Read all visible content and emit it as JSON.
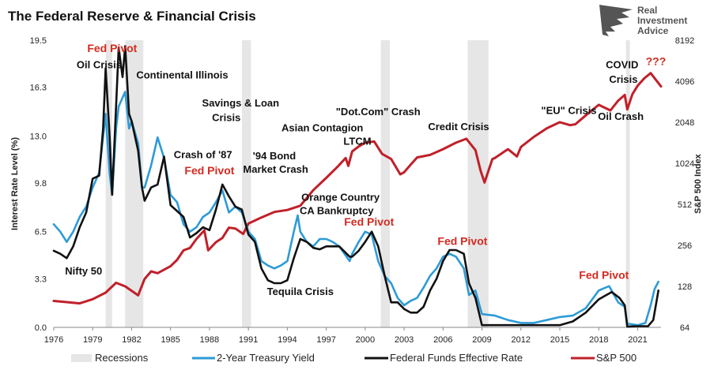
{
  "chart_data": {
    "type": "line",
    "title": "The Federal Reserve & Financial Crisis",
    "brand": "Real Investment Advice",
    "brand_lines": [
      "Real",
      "Investment",
      "Advice"
    ],
    "ylabel_left": "Interest Rate Level (%)",
    "ylabel_right": "S&P 500 Index",
    "xlim": [
      1976,
      2022.8
    ],
    "ylim_left": [
      0,
      19.5
    ],
    "ylim_right_log2": [
      6,
      13
    ],
    "x_ticks": [
      "1976",
      "1979",
      "1982",
      "1985",
      "1988",
      "1991",
      "1994",
      "1997",
      "2000",
      "2003",
      "2006",
      "2009",
      "2012",
      "2015",
      "2018",
      "2021"
    ],
    "y_ticks_left": [
      "0.0",
      "3.3",
      "6.5",
      "9.8",
      "13.0",
      "16.3",
      "19.5"
    ],
    "y_ticks_right": [
      "64",
      "128",
      "256",
      "512",
      "1024",
      "2048",
      "4096",
      "8192"
    ],
    "recessions": [
      [
        1980.0,
        1980.5
      ],
      [
        1981.5,
        1982.9
      ],
      [
        1990.5,
        1991.2
      ],
      [
        2001.2,
        2001.9
      ],
      [
        2007.9,
        2009.5
      ],
      [
        2020.1,
        2020.4
      ]
    ],
    "legend": [
      "Recessions",
      "2-Year Treasury Yield",
      "Federal Funds Effective Rate",
      "S&P 500"
    ],
    "colors": {
      "treasury": "#2e9bd6",
      "fedfunds": "#111111",
      "sp500": "#c0202a",
      "recession": "#e6e6e6",
      "pivot": "#d42a1f"
    },
    "series": [
      {
        "name": "Federal Funds Effective Rate",
        "points": [
          [
            1976,
            5.2
          ],
          [
            1976.5,
            5.0
          ],
          [
            1977,
            4.7
          ],
          [
            1977.5,
            5.5
          ],
          [
            1978,
            6.8
          ],
          [
            1978.5,
            7.8
          ],
          [
            1979,
            10.1
          ],
          [
            1979.5,
            10.3
          ],
          [
            1979.8,
            13.5
          ],
          [
            1980,
            17.6
          ],
          [
            1980.3,
            13.0
          ],
          [
            1980.5,
            9.0
          ],
          [
            1980.8,
            15.0
          ],
          [
            1981,
            19.0
          ],
          [
            1981.3,
            17.0
          ],
          [
            1981.5,
            19.1
          ],
          [
            1981.8,
            14.5
          ],
          [
            1982,
            14.0
          ],
          [
            1982.5,
            12.0
          ],
          [
            1982.8,
            9.5
          ],
          [
            1983,
            8.6
          ],
          [
            1983.5,
            9.5
          ],
          [
            1984,
            9.7
          ],
          [
            1984.5,
            11.6
          ],
          [
            1985,
            8.3
          ],
          [
            1985.5,
            7.9
          ],
          [
            1986,
            7.5
          ],
          [
            1986.5,
            6.1
          ],
          [
            1987,
            6.4
          ],
          [
            1987.5,
            6.8
          ],
          [
            1988,
            6.6
          ],
          [
            1988.5,
            8.0
          ],
          [
            1989,
            9.7
          ],
          [
            1989.5,
            8.9
          ],
          [
            1990,
            8.2
          ],
          [
            1990.5,
            8.0
          ],
          [
            1991,
            6.3
          ],
          [
            1991.5,
            5.8
          ],
          [
            1992,
            4.0
          ],
          [
            1992.5,
            3.2
          ],
          [
            1993,
            3.0
          ],
          [
            1993.5,
            3.0
          ],
          [
            1994,
            3.2
          ],
          [
            1994.5,
            4.7
          ],
          [
            1995,
            6.0
          ],
          [
            1995.5,
            5.8
          ],
          [
            1996,
            5.4
          ],
          [
            1996.5,
            5.3
          ],
          [
            1997,
            5.5
          ],
          [
            1997.5,
            5.5
          ],
          [
            1998,
            5.5
          ],
          [
            1998.8,
            4.8
          ],
          [
            1999,
            4.8
          ],
          [
            1999.5,
            5.2
          ],
          [
            2000,
            5.8
          ],
          [
            2000.5,
            6.5
          ],
          [
            2001,
            5.5
          ],
          [
            2001.5,
            3.5
          ],
          [
            2002,
            1.7
          ],
          [
            2002.5,
            1.7
          ],
          [
            2003,
            1.25
          ],
          [
            2003.5,
            1.0
          ],
          [
            2004,
            1.0
          ],
          [
            2004.5,
            1.4
          ],
          [
            2005,
            2.5
          ],
          [
            2005.5,
            3.3
          ],
          [
            2006,
            4.5
          ],
          [
            2006.5,
            5.25
          ],
          [
            2007,
            5.25
          ],
          [
            2007.6,
            5.0
          ],
          [
            2008,
            3.0
          ],
          [
            2008.5,
            2.0
          ],
          [
            2009,
            0.15
          ],
          [
            2010,
            0.15
          ],
          [
            2012,
            0.15
          ],
          [
            2015,
            0.15
          ],
          [
            2016,
            0.4
          ],
          [
            2017,
            1.0
          ],
          [
            2018,
            1.9
          ],
          [
            2019,
            2.4
          ],
          [
            2019.6,
            2.0
          ],
          [
            2020,
            1.5
          ],
          [
            2020.2,
            0.05
          ],
          [
            2021,
            0.08
          ],
          [
            2021.8,
            0.08
          ],
          [
            2022.2,
            0.5
          ],
          [
            2022.6,
            2.5
          ]
        ]
      },
      {
        "name": "2-Year Treasury Yield",
        "points": [
          [
            1976,
            7.0
          ],
          [
            1976.5,
            6.5
          ],
          [
            1977,
            5.8
          ],
          [
            1977.5,
            6.5
          ],
          [
            1978,
            7.5
          ],
          [
            1978.5,
            8.2
          ],
          [
            1979,
            9.5
          ],
          [
            1979.5,
            10.5
          ],
          [
            1980,
            14.5
          ],
          [
            1980.3,
            10.5
          ],
          [
            1980.5,
            9.0
          ],
          [
            1980.8,
            13.5
          ],
          [
            1981,
            15.0
          ],
          [
            1981.5,
            16.0
          ],
          [
            1981.8,
            13.5
          ],
          [
            1982,
            14.0
          ],
          [
            1982.5,
            12.5
          ],
          [
            1982.8,
            9.5
          ],
          [
            1983,
            9.5
          ],
          [
            1983.5,
            11.0
          ],
          [
            1984,
            12.9
          ],
          [
            1984.5,
            11.5
          ],
          [
            1985,
            9.0
          ],
          [
            1985.5,
            8.5
          ],
          [
            1986,
            7.0
          ],
          [
            1986.5,
            6.5
          ],
          [
            1987,
            6.8
          ],
          [
            1987.5,
            7.5
          ],
          [
            1988,
            7.8
          ],
          [
            1988.5,
            8.5
          ],
          [
            1989,
            9.3
          ],
          [
            1989.5,
            7.8
          ],
          [
            1990,
            8.2
          ],
          [
            1990.5,
            7.8
          ],
          [
            1991,
            6.5
          ],
          [
            1991.5,
            6.0
          ],
          [
            1992,
            4.5
          ],
          [
            1992.5,
            4.2
          ],
          [
            1993,
            4.0
          ],
          [
            1993.5,
            4.2
          ],
          [
            1994,
            4.5
          ],
          [
            1994.5,
            6.5
          ],
          [
            1994.8,
            7.6
          ],
          [
            1995,
            6.5
          ],
          [
            1995.5,
            5.8
          ],
          [
            1996,
            5.5
          ],
          [
            1996.5,
            6.0
          ],
          [
            1997,
            6.0
          ],
          [
            1997.5,
            5.8
          ],
          [
            1998,
            5.5
          ],
          [
            1998.8,
            4.5
          ],
          [
            1999,
            5.0
          ],
          [
            1999.5,
            5.8
          ],
          [
            2000,
            6.5
          ],
          [
            2000.5,
            6.3
          ],
          [
            2001,
            4.5
          ],
          [
            2001.5,
            3.5
          ],
          [
            2002,
            3.0
          ],
          [
            2002.5,
            2.0
          ],
          [
            2003,
            1.5
          ],
          [
            2003.5,
            1.8
          ],
          [
            2004,
            2.0
          ],
          [
            2004.5,
            2.7
          ],
          [
            2005,
            3.5
          ],
          [
            2005.5,
            4.0
          ],
          [
            2006,
            4.8
          ],
          [
            2006.5,
            5.0
          ],
          [
            2007,
            4.8
          ],
          [
            2007.6,
            4.0
          ],
          [
            2008,
            2.2
          ],
          [
            2008.5,
            2.5
          ],
          [
            2009,
            0.9
          ],
          [
            2010,
            0.8
          ],
          [
            2011,
            0.5
          ],
          [
            2012,
            0.3
          ],
          [
            2013,
            0.3
          ],
          [
            2014,
            0.5
          ],
          [
            2015,
            0.7
          ],
          [
            2016,
            0.8
          ],
          [
            2017,
            1.3
          ],
          [
            2018,
            2.5
          ],
          [
            2018.8,
            2.8
          ],
          [
            2019.5,
            1.7
          ],
          [
            2020,
            1.4
          ],
          [
            2020.2,
            0.25
          ],
          [
            2021,
            0.15
          ],
          [
            2021.6,
            0.3
          ],
          [
            2022,
            1.5
          ],
          [
            2022.3,
            2.6
          ],
          [
            2022.6,
            3.1
          ]
        ]
      },
      {
        "name": "S&P 500",
        "points": [
          [
            1976,
            100
          ],
          [
            1977,
            98
          ],
          [
            1978,
            96
          ],
          [
            1979,
            103
          ],
          [
            1980,
            115
          ],
          [
            1980.8,
            136
          ],
          [
            1981.5,
            128
          ],
          [
            1982.5,
            110
          ],
          [
            1983,
            145
          ],
          [
            1983.5,
            165
          ],
          [
            1984,
            160
          ],
          [
            1985,
            180
          ],
          [
            1985.5,
            200
          ],
          [
            1986,
            235
          ],
          [
            1986.5,
            245
          ],
          [
            1987,
            285
          ],
          [
            1987.6,
            330
          ],
          [
            1987.9,
            235
          ],
          [
            1988.5,
            270
          ],
          [
            1989,
            290
          ],
          [
            1989.5,
            345
          ],
          [
            1990,
            340
          ],
          [
            1990.6,
            310
          ],
          [
            1991,
            370
          ],
          [
            1992,
            410
          ],
          [
            1993,
            450
          ],
          [
            1994,
            465
          ],
          [
            1995,
            500
          ],
          [
            1996,
            650
          ],
          [
            1997,
            800
          ],
          [
            1997.8,
            950
          ],
          [
            1998.5,
            1120
          ],
          [
            1998.7,
            980
          ],
          [
            1999,
            1250
          ],
          [
            1999.5,
            1360
          ],
          [
            2000,
            1450
          ],
          [
            2000.7,
            1480
          ],
          [
            2001.3,
            1200
          ],
          [
            2002,
            1100
          ],
          [
            2002.7,
            850
          ],
          [
            2003,
            880
          ],
          [
            2003.5,
            1000
          ],
          [
            2004,
            1130
          ],
          [
            2005,
            1180
          ],
          [
            2006,
            1300
          ],
          [
            2007,
            1450
          ],
          [
            2007.8,
            1550
          ],
          [
            2008.5,
            1280
          ],
          [
            2008.9,
            900
          ],
          [
            2009.2,
            740
          ],
          [
            2009.8,
            1100
          ],
          [
            2010,
            1120
          ],
          [
            2011,
            1300
          ],
          [
            2011.7,
            1150
          ],
          [
            2012,
            1350
          ],
          [
            2013,
            1600
          ],
          [
            2014,
            1850
          ],
          [
            2015,
            2050
          ],
          [
            2015.8,
            1950
          ],
          [
            2016.2,
            1980
          ],
          [
            2017,
            2300
          ],
          [
            2018,
            2750
          ],
          [
            2018.9,
            2500
          ],
          [
            2019.5,
            2950
          ],
          [
            2020,
            3250
          ],
          [
            2020.2,
            2550
          ],
          [
            2020.6,
            3300
          ],
          [
            2021,
            3800
          ],
          [
            2021.5,
            4300
          ],
          [
            2022,
            4700
          ],
          [
            2022.4,
            4200
          ],
          [
            2022.8,
            3750
          ]
        ]
      }
    ],
    "annotations": [
      {
        "text": "Oil Crisis",
        "x": 1979.5,
        "y": 17.6,
        "color": "black"
      },
      {
        "text": "Fed Pivot",
        "x": 1980.5,
        "y": 18.7,
        "color": "red"
      },
      {
        "text": "Continental Illinois",
        "x": 1985.9,
        "y": 16.9,
        "color": "black"
      },
      {
        "text": "Savings & Loan",
        "x": 1990.4,
        "y": 15.0,
        "color": "black"
      },
      {
        "text": "Crisis",
        "x": 1989.3,
        "y": 14.0,
        "color": "black"
      },
      {
        "text": "Asian Contagion",
        "x": 1996.7,
        "y": 13.3,
        "color": "black"
      },
      {
        "text": "LTCM",
        "x": 1999.4,
        "y": 12.4,
        "color": "black"
      },
      {
        "text": "\"Dot.Com\" Crash",
        "x": 2001.0,
        "y": 14.4,
        "color": "black"
      },
      {
        "text": "Credit Crisis",
        "x": 2007.2,
        "y": 13.4,
        "color": "black"
      },
      {
        "text": "\"EU\" Crisis",
        "x": 2015.7,
        "y": 14.5,
        "color": "black"
      },
      {
        "text": "COVID",
        "x": 2019.8,
        "y": 17.6,
        "color": "black"
      },
      {
        "text": "Crisis",
        "x": 2019.9,
        "y": 16.6,
        "color": "black"
      },
      {
        "text": "Oil Crash",
        "x": 2019.7,
        "y": 14.1,
        "color": "black"
      },
      {
        "text": "???",
        "x": 2022.4,
        "y": 17.8,
        "color": "red"
      },
      {
        "text": "Crash of '87",
        "x": 1987.5,
        "y": 11.5,
        "color": "black"
      },
      {
        "text": "Fed Pivot",
        "x": 1988.0,
        "y": 10.4,
        "color": "red"
      },
      {
        "text": "'94 Bond",
        "x": 1993.0,
        "y": 11.4,
        "color": "black"
      },
      {
        "text": "Market Crash",
        "x": 1993.1,
        "y": 10.5,
        "color": "black"
      },
      {
        "text": "Orange Country",
        "x": 1998.1,
        "y": 8.6,
        "color": "black"
      },
      {
        "text": "CA Bankruptcy",
        "x": 1997.8,
        "y": 7.7,
        "color": "black"
      },
      {
        "text": "Fed Pivot",
        "x": 2000.3,
        "y": 6.9,
        "color": "red"
      },
      {
        "text": "Fed Pivot",
        "x": 2007.5,
        "y": 5.6,
        "color": "red"
      },
      {
        "text": "Nifty 50",
        "x": 1978.3,
        "y": 3.6,
        "color": "black"
      },
      {
        "text": "Tequila Crisis",
        "x": 1995.0,
        "y": 2.2,
        "color": "black"
      },
      {
        "text": "Fed Pivot",
        "x": 2018.4,
        "y": 3.3,
        "color": "red"
      }
    ]
  }
}
